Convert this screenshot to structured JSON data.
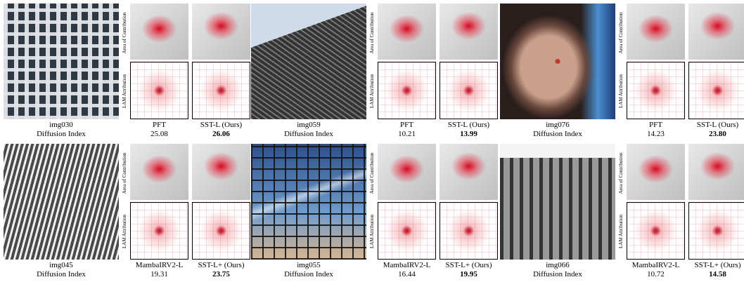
{
  "labels": {
    "area": "Area of Contribution",
    "lam": "LAM Attribution"
  },
  "rows": [
    {
      "groups": [
        {
          "image": "img030",
          "caption": "Diffusion Index",
          "methods": [
            {
              "name": "PFT",
              "value": "25.08"
            },
            {
              "name": "SST-L (Ours)",
              "value": "26.06"
            }
          ]
        },
        {
          "image": "img059",
          "caption": "Diffusion Index",
          "methods": [
            {
              "name": "PFT",
              "value": "10.21"
            },
            {
              "name": "SST-L (Ours)",
              "value": "13.99"
            }
          ]
        },
        {
          "image": "img076",
          "caption": "Diffusion Index",
          "methods": [
            {
              "name": "PFT",
              "value": "14.23"
            },
            {
              "name": "SST-L (Ours)",
              "value": "23.80"
            }
          ]
        }
      ]
    },
    {
      "groups": [
        {
          "image": "img045",
          "caption": "Diffusion Index",
          "methods": [
            {
              "name": "MambaIRV2-L",
              "value": "19.31"
            },
            {
              "name": "SST-L+ (Ours)",
              "value": "23.75"
            }
          ]
        },
        {
          "image": "img055",
          "caption": "Diffusion Index",
          "methods": [
            {
              "name": "MambaIRV2-L",
              "value": "16.44"
            },
            {
              "name": "SST-L+ (Ours)",
              "value": "19.95"
            }
          ]
        },
        {
          "image": "img066",
          "caption": "Diffusion Index",
          "methods": [
            {
              "name": "MambaIRV2-L",
              "value": "10.72"
            },
            {
              "name": "SST-L+ (Ours)",
              "value": "14.58"
            }
          ]
        }
      ]
    }
  ]
}
